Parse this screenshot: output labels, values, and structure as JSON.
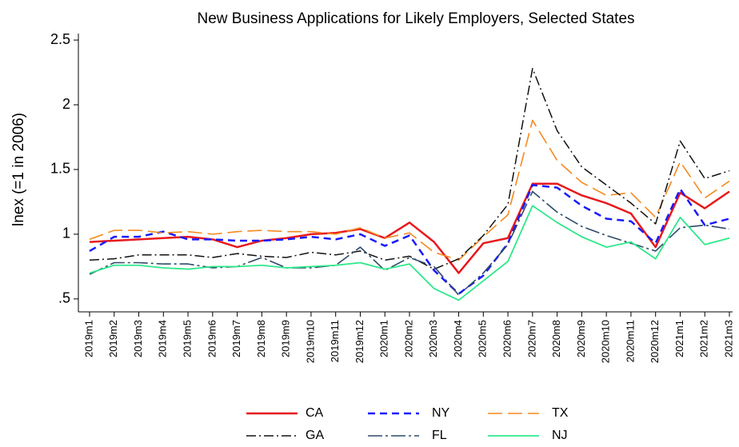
{
  "chart_data": {
    "type": "line",
    "title": "New Business Applications for Likely Employers, Selected States",
    "y_label": "lnex (=1 in 2006)",
    "categories": [
      "2019m1",
      "2019m2",
      "2019m3",
      "2019m4",
      "2019m5",
      "2019m6",
      "2019m7",
      "2019m8",
      "2019m9",
      "2019m10",
      "2019m11",
      "2019m12",
      "2020m1",
      "2020m2",
      "2020m3",
      "2020m4",
      "2020m5",
      "2020m6",
      "2020m7",
      "2020m8",
      "2020m9",
      "2020m10",
      "2020m11",
      "2020m12",
      "2021m1",
      "2021m2",
      "2021m3"
    ],
    "series": [
      {
        "name": "CA",
        "color": "#e8191c",
        "dash": "none",
        "width": 2.5,
        "values": [
          0.94,
          0.95,
          0.96,
          0.97,
          0.98,
          0.96,
          0.9,
          0.95,
          0.97,
          1.0,
          1.01,
          1.04,
          0.97,
          1.09,
          0.94,
          0.7,
          0.93,
          0.97,
          1.39,
          1.39,
          1.3,
          1.24,
          1.16,
          0.9,
          1.32,
          1.2,
          1.33
        ]
      },
      {
        "name": "NY",
        "color": "#1a1aff",
        "dash": "9,6",
        "width": 2.5,
        "values": [
          0.87,
          0.98,
          0.98,
          1.02,
          0.96,
          0.96,
          0.95,
          0.95,
          0.96,
          0.98,
          0.96,
          1.0,
          0.91,
          0.99,
          0.72,
          0.54,
          0.68,
          0.93,
          1.38,
          1.36,
          1.22,
          1.12,
          1.1,
          0.93,
          1.35,
          1.07,
          1.12
        ]
      },
      {
        "name": "TX",
        "color": "#f5891e",
        "dash": "18,7",
        "width": 1.6,
        "values": [
          0.96,
          1.03,
          1.03,
          1.01,
          1.02,
          1.0,
          1.02,
          1.03,
          1.02,
          1.02,
          1.0,
          1.05,
          0.97,
          1.01,
          0.86,
          0.8,
          0.98,
          1.15,
          1.88,
          1.57,
          1.4,
          1.3,
          1.32,
          1.13,
          1.56,
          1.28,
          1.41
        ]
      },
      {
        "name": "GA",
        "color": "#111111",
        "dash": "12,4,2,4",
        "width": 1.5,
        "values": [
          0.8,
          0.81,
          0.84,
          0.84,
          0.84,
          0.82,
          0.85,
          0.83,
          0.82,
          0.86,
          0.84,
          0.87,
          0.8,
          0.83,
          0.73,
          0.81,
          0.99,
          1.23,
          2.28,
          1.8,
          1.52,
          1.38,
          1.24,
          1.08,
          1.72,
          1.43,
          1.49
        ]
      },
      {
        "name": "FL",
        "color": "#2d4a6a",
        "dash": "18,4,3,4",
        "width": 1.6,
        "values": [
          0.69,
          0.78,
          0.78,
          0.77,
          0.77,
          0.74,
          0.75,
          0.82,
          0.74,
          0.74,
          0.76,
          0.9,
          0.72,
          0.82,
          0.75,
          0.53,
          0.7,
          0.92,
          1.33,
          1.17,
          1.06,
          0.99,
          0.93,
          0.87,
          1.05,
          1.07,
          1.04
        ]
      },
      {
        "name": "NJ",
        "color": "#2de88a",
        "dash": "none",
        "width": 1.8,
        "values": [
          0.7,
          0.76,
          0.76,
          0.74,
          0.73,
          0.75,
          0.75,
          0.76,
          0.74,
          0.75,
          0.76,
          0.78,
          0.73,
          0.77,
          0.58,
          0.49,
          0.64,
          0.79,
          1.22,
          1.09,
          0.98,
          0.9,
          0.94,
          0.81,
          1.13,
          0.92,
          0.97
        ]
      }
    ],
    "ylim": [
      0.4,
      2.55
    ],
    "yticks": [
      {
        "value": 0.5,
        "label": ".5"
      },
      1,
      1.5,
      2,
      2.5
    ]
  }
}
